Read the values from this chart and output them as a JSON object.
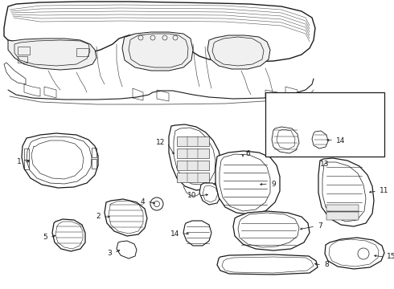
{
  "bg_color": "#ffffff",
  "fig_width": 4.9,
  "fig_height": 3.6,
  "dpi": 100,
  "line_color": "#1a1a1a",
  "line_width": 0.7,
  "label_fontsize": 6.5
}
